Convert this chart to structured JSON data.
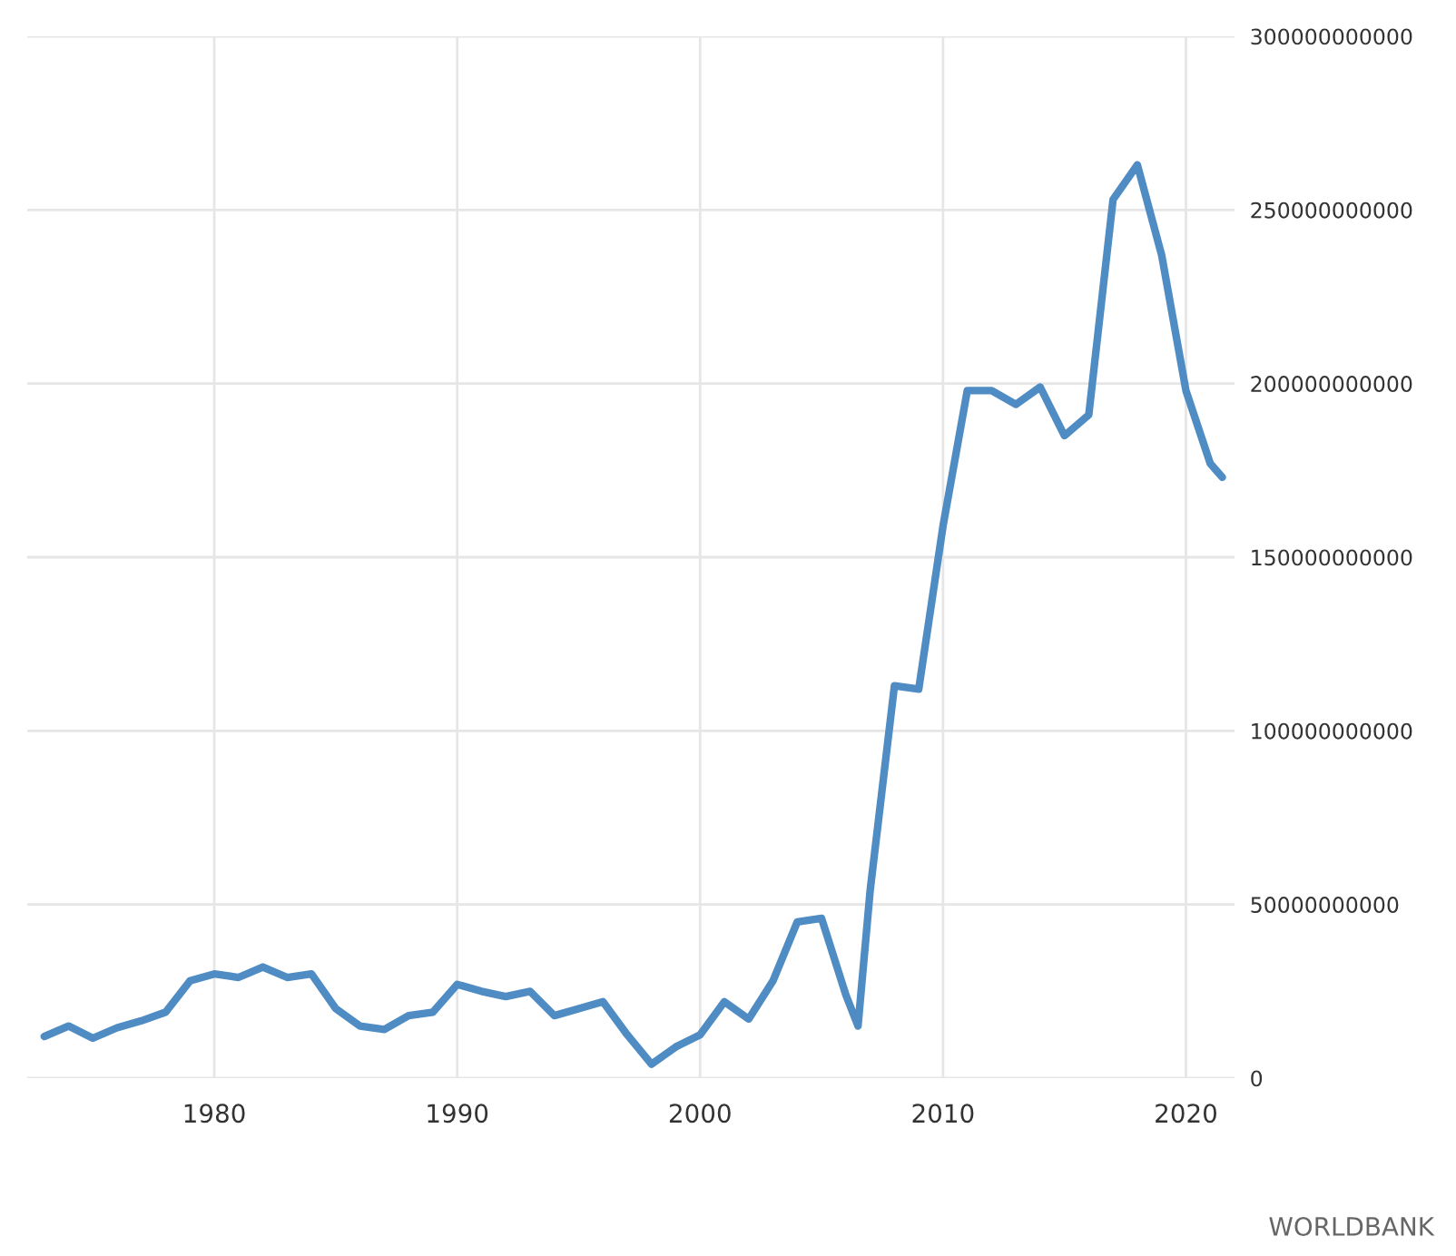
{
  "chart_data": {
    "type": "line",
    "x": [
      1973,
      1974,
      1975,
      1976,
      1977,
      1978,
      1979,
      1980,
      1981,
      1982,
      1983,
      1984,
      1985,
      1986,
      1987,
      1988,
      1989,
      1990,
      1991,
      1992,
      1993,
      1994,
      1995,
      1996,
      1997,
      1998,
      1999,
      2000,
      2001,
      2002,
      2003,
      2004,
      2005,
      2006,
      2006.5,
      2007,
      2008,
      2009,
      2010,
      2011,
      2012,
      2013,
      2014,
      2015,
      2016,
      2017,
      2018,
      2019,
      2020,
      2021,
      2021.5
    ],
    "series": [
      {
        "color": "#4f8cc4",
        "values": [
          12000000000,
          15000000000,
          11500000000,
          14500000000,
          16500000000,
          19000000000,
          28000000000,
          30000000000,
          29000000000,
          32000000000,
          29000000000,
          30000000000,
          20000000000,
          15000000000,
          14000000000,
          18000000000,
          19000000000,
          27000000000,
          25000000000,
          23500000000,
          25000000000,
          18000000000,
          20000000000,
          22000000000,
          12500000000,
          4000000000,
          9000000000,
          12500000000,
          22000000000,
          17000000000,
          28000000000,
          45000000000,
          46000000000,
          24000000000,
          15000000000,
          54000000000,
          113000000000,
          112000000000,
          159000000000,
          198000000000,
          198000000000,
          194000000000,
          199000000000,
          185000000000,
          191000000000,
          253000000000,
          263000000000,
          237000000000,
          198000000000,
          177000000000,
          173000000000
        ]
      }
    ],
    "xlim": [
      1972.3,
      2022
    ],
    "xticks": [
      1980,
      1990,
      2000,
      2010,
      2020
    ],
    "ylim": [
      0,
      300000000000
    ],
    "yticks": [
      0,
      50000000000,
      100000000000,
      150000000000,
      200000000000,
      250000000000,
      300000000000
    ],
    "grid": true,
    "annotations": [
      "WORLDBANK"
    ]
  }
}
